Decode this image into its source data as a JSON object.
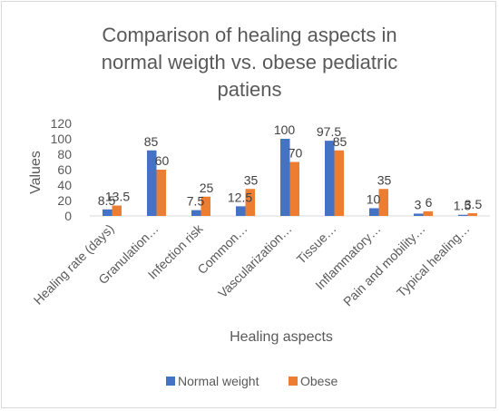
{
  "chart_data": {
    "type": "bar",
    "title_lines": [
      "Comparison of healing aspects in",
      "normal weigth vs. obese pediatric",
      "patiens"
    ],
    "xlabel": "Healing aspects",
    "ylabel": "Values",
    "ylim": [
      0,
      120
    ],
    "yticks": [
      0,
      20,
      40,
      60,
      80,
      100,
      120
    ],
    "grid": false,
    "legend_position": "bottom",
    "categories": [
      "Healing rate (days)",
      "Granulation…",
      "Infection risk",
      "Common…",
      "Vascularization…",
      "Tissue…",
      "Inflammatory…",
      "Pain and mobility…",
      "Typical healing…"
    ],
    "series": [
      {
        "name": "Normal weight",
        "color": "#4472c4",
        "values": [
          8.5,
          85,
          7.5,
          12.5,
          100,
          97.5,
          10,
          3,
          1.5
        ],
        "labels": [
          "8.5",
          "85",
          "7.5",
          "12.5",
          "100",
          "97.5",
          "10",
          "3",
          "1.5"
        ]
      },
      {
        "name": "Obese",
        "color": "#ed7d31",
        "values": [
          13.5,
          60,
          25,
          35,
          70,
          85,
          35,
          6,
          3.5
        ],
        "labels": [
          "13.5",
          "60",
          "25",
          "35",
          "70",
          "85",
          "35",
          "6",
          "3.5"
        ]
      }
    ]
  }
}
